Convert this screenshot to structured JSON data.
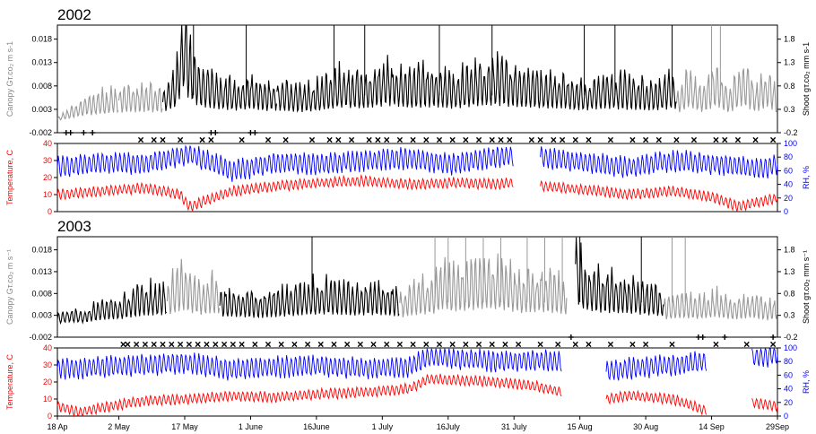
{
  "chart_data": {
    "type": "line",
    "x_start": "18 Apr",
    "x_end": "29 Sep",
    "x_tick_labels": [
      "18 Ap",
      "2 May",
      "17 May",
      "1 June",
      "16June",
      "1 July",
      "16July",
      "31 July",
      "15 Aug",
      "30 Aug",
      "14 Sep",
      "29Sep"
    ],
    "colors": {
      "canopy_dark": "#000000",
      "canopy_light": "#999999",
      "temperature": "#ff0000",
      "rh": "#0000ff",
      "axis": "#000000"
    },
    "panels": [
      {
        "year": "2002",
        "canopy": {
          "ylabel_left": "Canopy Gт.co₂ m s-1",
          "ylabel_right": "Shoot gт.co₂ mm s-1",
          "yticks_left": [
            "0.018",
            "0.013",
            "0.008",
            "0.003",
            "-0.002"
          ],
          "yticks_right": [
            "1.8",
            "1.3",
            "0.8",
            "0.3",
            "-0.2"
          ],
          "ylim": [
            -0.002,
            0.021
          ],
          "series_light_segments": [
            {
              "x": [
                0,
                1,
                2,
                3,
                4,
                5,
                6,
                7,
                8,
                9,
                10,
                11,
                12,
                13,
                14
              ],
              "y": [
                0.001,
                0.0015,
                0.002,
                0.0025,
                0.003,
                0.0035,
                0.004,
                0.0045,
                0.0042,
                0.0048,
                0.0052,
                0.005,
                0.0055,
                0.0058,
                0.0055
              ]
            },
            {
              "x": [
                14,
                16,
                18,
                20,
                22,
                24
              ],
              "y": [
                0.0055,
                0.006,
                0.0058,
                0.0062,
                0.006,
                0.0058
              ]
            },
            {
              "x": [
                141,
                144,
                147,
                150,
                153,
                156,
                159,
                162,
                164
              ],
              "y": [
                0.005,
                0.009,
                0.006,
                0.0095,
                0.0055,
                0.01,
                0.006,
                0.009,
                0.005
              ]
            }
          ],
          "series_dark_segments": [
            {
              "x": [
                24,
                27,
                28,
                29,
                30,
                32,
                35,
                38,
                41,
                44,
                47,
                50
              ],
              "y": [
                0.006,
                0.009,
                0.015,
                0.021,
                0.013,
                0.01,
                0.008,
                0.0075,
                0.007,
                0.008,
                0.0068,
                0.007
              ]
            },
            {
              "x": [
                50,
                55,
                60,
                65,
                70,
                75,
                80,
                85,
                90,
                95,
                100,
                105,
                110,
                115,
                120,
                125,
                130,
                135,
                141
              ],
              "y": [
                0.007,
                0.006,
                0.007,
                0.009,
                0.008,
                0.01,
                0.0085,
                0.009,
                0.008,
                0.0095,
                0.01,
                0.009,
                0.0085,
                0.008,
                0.007,
                0.008,
                0.0075,
                0.007,
                0.008
              ]
            }
          ],
          "spikes_x": [
            31,
            43,
            63,
            70,
            87,
            99,
            120,
            127,
            140,
            149,
            151
          ]
        },
        "climate": {
          "ylabel_left": "Temperature, C",
          "ylabel_right": "RH, %",
          "yticks_left": [
            "40",
            "30",
            "20",
            "10",
            "0"
          ],
          "yticks_right": [
            "100",
            "80",
            "60",
            "40",
            "20",
            "0"
          ],
          "temp_range": [
            0,
            40
          ],
          "rh_range": [
            0,
            100
          ],
          "gaps_days": [
            [
              104,
              110
            ]
          ],
          "temperature": {
            "x": [
              0,
              10,
              20,
              28,
              30,
              40,
              50,
              60,
              70,
              80,
              90,
              100,
              104,
              110,
              120,
              130,
              140,
              150,
              155,
              164
            ],
            "y": [
              10,
              12,
              14,
              10,
              3,
              12,
              15,
              17,
              18,
              16,
              17,
              16,
              17,
              15,
              13,
              10,
              12,
              8,
              3,
              8
            ]
          },
          "rh": {
            "x": [
              0,
              10,
              20,
              30,
              40,
              50,
              60,
              70,
              80,
              90,
              100,
              104,
              110,
              120,
              130,
              140,
              150,
              160,
              164
            ],
            "y": [
              65,
              72,
              70,
              85,
              60,
              72,
              70,
              75,
              78,
              70,
              80,
              82,
              80,
              72,
              65,
              75,
              70,
              62,
              70
            ]
          }
        },
        "events": {
          "x_marks": [
            19,
            22,
            24,
            28,
            33,
            35,
            42,
            48,
            52,
            58,
            62,
            64,
            67,
            71,
            73,
            75,
            78,
            81,
            84,
            87,
            90,
            93,
            96,
            99,
            101,
            103,
            108,
            110,
            113,
            115,
            118,
            121,
            126,
            131,
            134,
            137,
            141,
            145,
            150,
            152,
            155,
            159,
            163
          ],
          "plus_marks": [
            2,
            3,
            6,
            8,
            35,
            36,
            44,
            45
          ]
        }
      },
      {
        "year": "2003",
        "canopy": {
          "ylabel_left": "Canopy Gт.co₂ m s⁻¹",
          "ylabel_right": "Shoot gт.co₂ mm s⁻¹",
          "yticks_left": [
            "0.018",
            "0.013",
            "0.008",
            "0.003",
            "-0.002"
          ],
          "yticks_right": [
            "1.8",
            "1.3",
            "0.8",
            "0.3",
            "-0.2"
          ],
          "ylim": [
            -0.002,
            0.021
          ],
          "series_light_segments": [
            {
              "x": [
                25,
                27,
                29,
                31,
                33,
                35,
                37
              ],
              "y": [
                0.008,
                0.0095,
                0.011,
                0.009,
                0.008,
                0.009,
                0.0085
              ]
            },
            {
              "x": [
                78,
                82,
                86,
                88,
                90,
                94,
                98,
                102,
                106,
                110,
                114,
                116
              ],
              "y": [
                0.006,
                0.008,
                0.009,
                0.012,
                0.01,
                0.011,
                0.012,
                0.011,
                0.009,
                0.01,
                0.009,
                0.008
              ]
            },
            {
              "x": [
                138,
                142,
                146,
                150,
                154,
                158,
                162,
                164
              ],
              "y": [
                0.005,
                0.006,
                0.0055,
                0.0065,
                0.005,
                0.006,
                0.0045,
                0.0055
              ]
            }
          ],
          "series_dark_segments": [
            {
              "x": [
                0,
                3,
                6,
                9,
                12,
                15,
                18,
                21,
                24,
                25
              ],
              "y": [
                0.0025,
                0.0035,
                0.003,
                0.0045,
                0.005,
                0.0055,
                0.007,
                0.0075,
                0.008,
                0.008
              ]
            },
            {
              "x": [
                37,
                42,
                47,
                52,
                57,
                62,
                67,
                72,
                78
              ],
              "y": [
                0.007,
                0.0065,
                0.006,
                0.007,
                0.008,
                0.0085,
                0.0075,
                0.008,
                0.007
              ]
            },
            {
              "x": [
                118,
                119,
                120,
                124,
                128,
                132,
                136,
                138
              ],
              "y": [
                0.018,
                0.013,
                0.011,
                0.0095,
                0.009,
                0.0085,
                0.0075,
                0.007
              ]
            }
          ],
          "spikes_x": [
            58,
            86,
            89,
            93,
            97,
            101,
            107,
            111,
            115,
            119,
            133,
            140,
            143
          ]
        },
        "climate": {
          "ylabel_left": "Temperature, C",
          "ylabel_right": "RH, %",
          "yticks_left": [
            "40",
            "30",
            "20",
            "10",
            "0"
          ],
          "yticks_right": [
            "100",
            "80",
            "60",
            "40",
            "20",
            "0"
          ],
          "temp_range": [
            0,
            40
          ],
          "rh_range": [
            0,
            100
          ],
          "gaps_days": [
            [
              115,
              125
            ],
            [
              148,
              158
            ]
          ],
          "temperature": {
            "x": [
              0,
              5,
              10,
              20,
              30,
              40,
              50,
              60,
              70,
              80,
              85,
              90,
              100,
              110,
              115,
              125,
              130,
              140,
              148,
              158,
              164
            ],
            "y": [
              6,
              2,
              5,
              9,
              10,
              12,
              11,
              13,
              14,
              16,
              22,
              21,
              20,
              17,
              14,
              10,
              12,
              10,
              3,
              8,
              6
            ]
          },
          "rh": {
            "x": [
              0,
              10,
              20,
              30,
              40,
              50,
              60,
              70,
              80,
              85,
              90,
              100,
              110,
              115,
              125,
              130,
              140,
              148,
              158,
              164
            ],
            "y": [
              70,
              72,
              75,
              78,
              68,
              72,
              74,
              70,
              72,
              88,
              85,
              80,
              82,
              80,
              65,
              70,
              75,
              80,
              85,
              90
            ]
          }
        },
        "events": {
          "x_marks": [
            15,
            16,
            18,
            20,
            22,
            24,
            26,
            28,
            30,
            32,
            34,
            36,
            38,
            40,
            42,
            45,
            48,
            51,
            54,
            57,
            60,
            63,
            66,
            69,
            72,
            75,
            78,
            81,
            84,
            87,
            90,
            93,
            96,
            99,
            102,
            105,
            110,
            114,
            118,
            121,
            126,
            131,
            134,
            140,
            150,
            157,
            163
          ],
          "plus_marks": [
            117,
            146,
            147,
            152,
            163
          ]
        }
      }
    ]
  }
}
